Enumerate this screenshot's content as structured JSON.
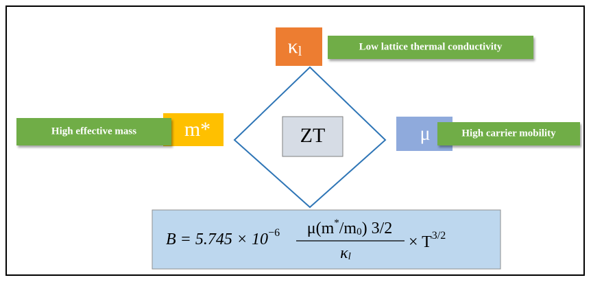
{
  "kappa": {
    "symbol": "κ",
    "sub": "l",
    "label": "Low lattice thermal conductivity"
  },
  "mass": {
    "symbol": "m*",
    "label": "High effective mass"
  },
  "center": "ZT",
  "mobility": {
    "symbol": "μ",
    "label": "High carrier mobility"
  },
  "formula": {
    "lead": "B = 5.745 × 10",
    "power": "−6",
    "numerator": [
      "μ(m",
      "*",
      "/m",
      "0",
      ") 3/2"
    ],
    "denominator": [
      "κ",
      "l"
    ],
    "tail": "× T",
    "tail_power": "3/2"
  }
}
